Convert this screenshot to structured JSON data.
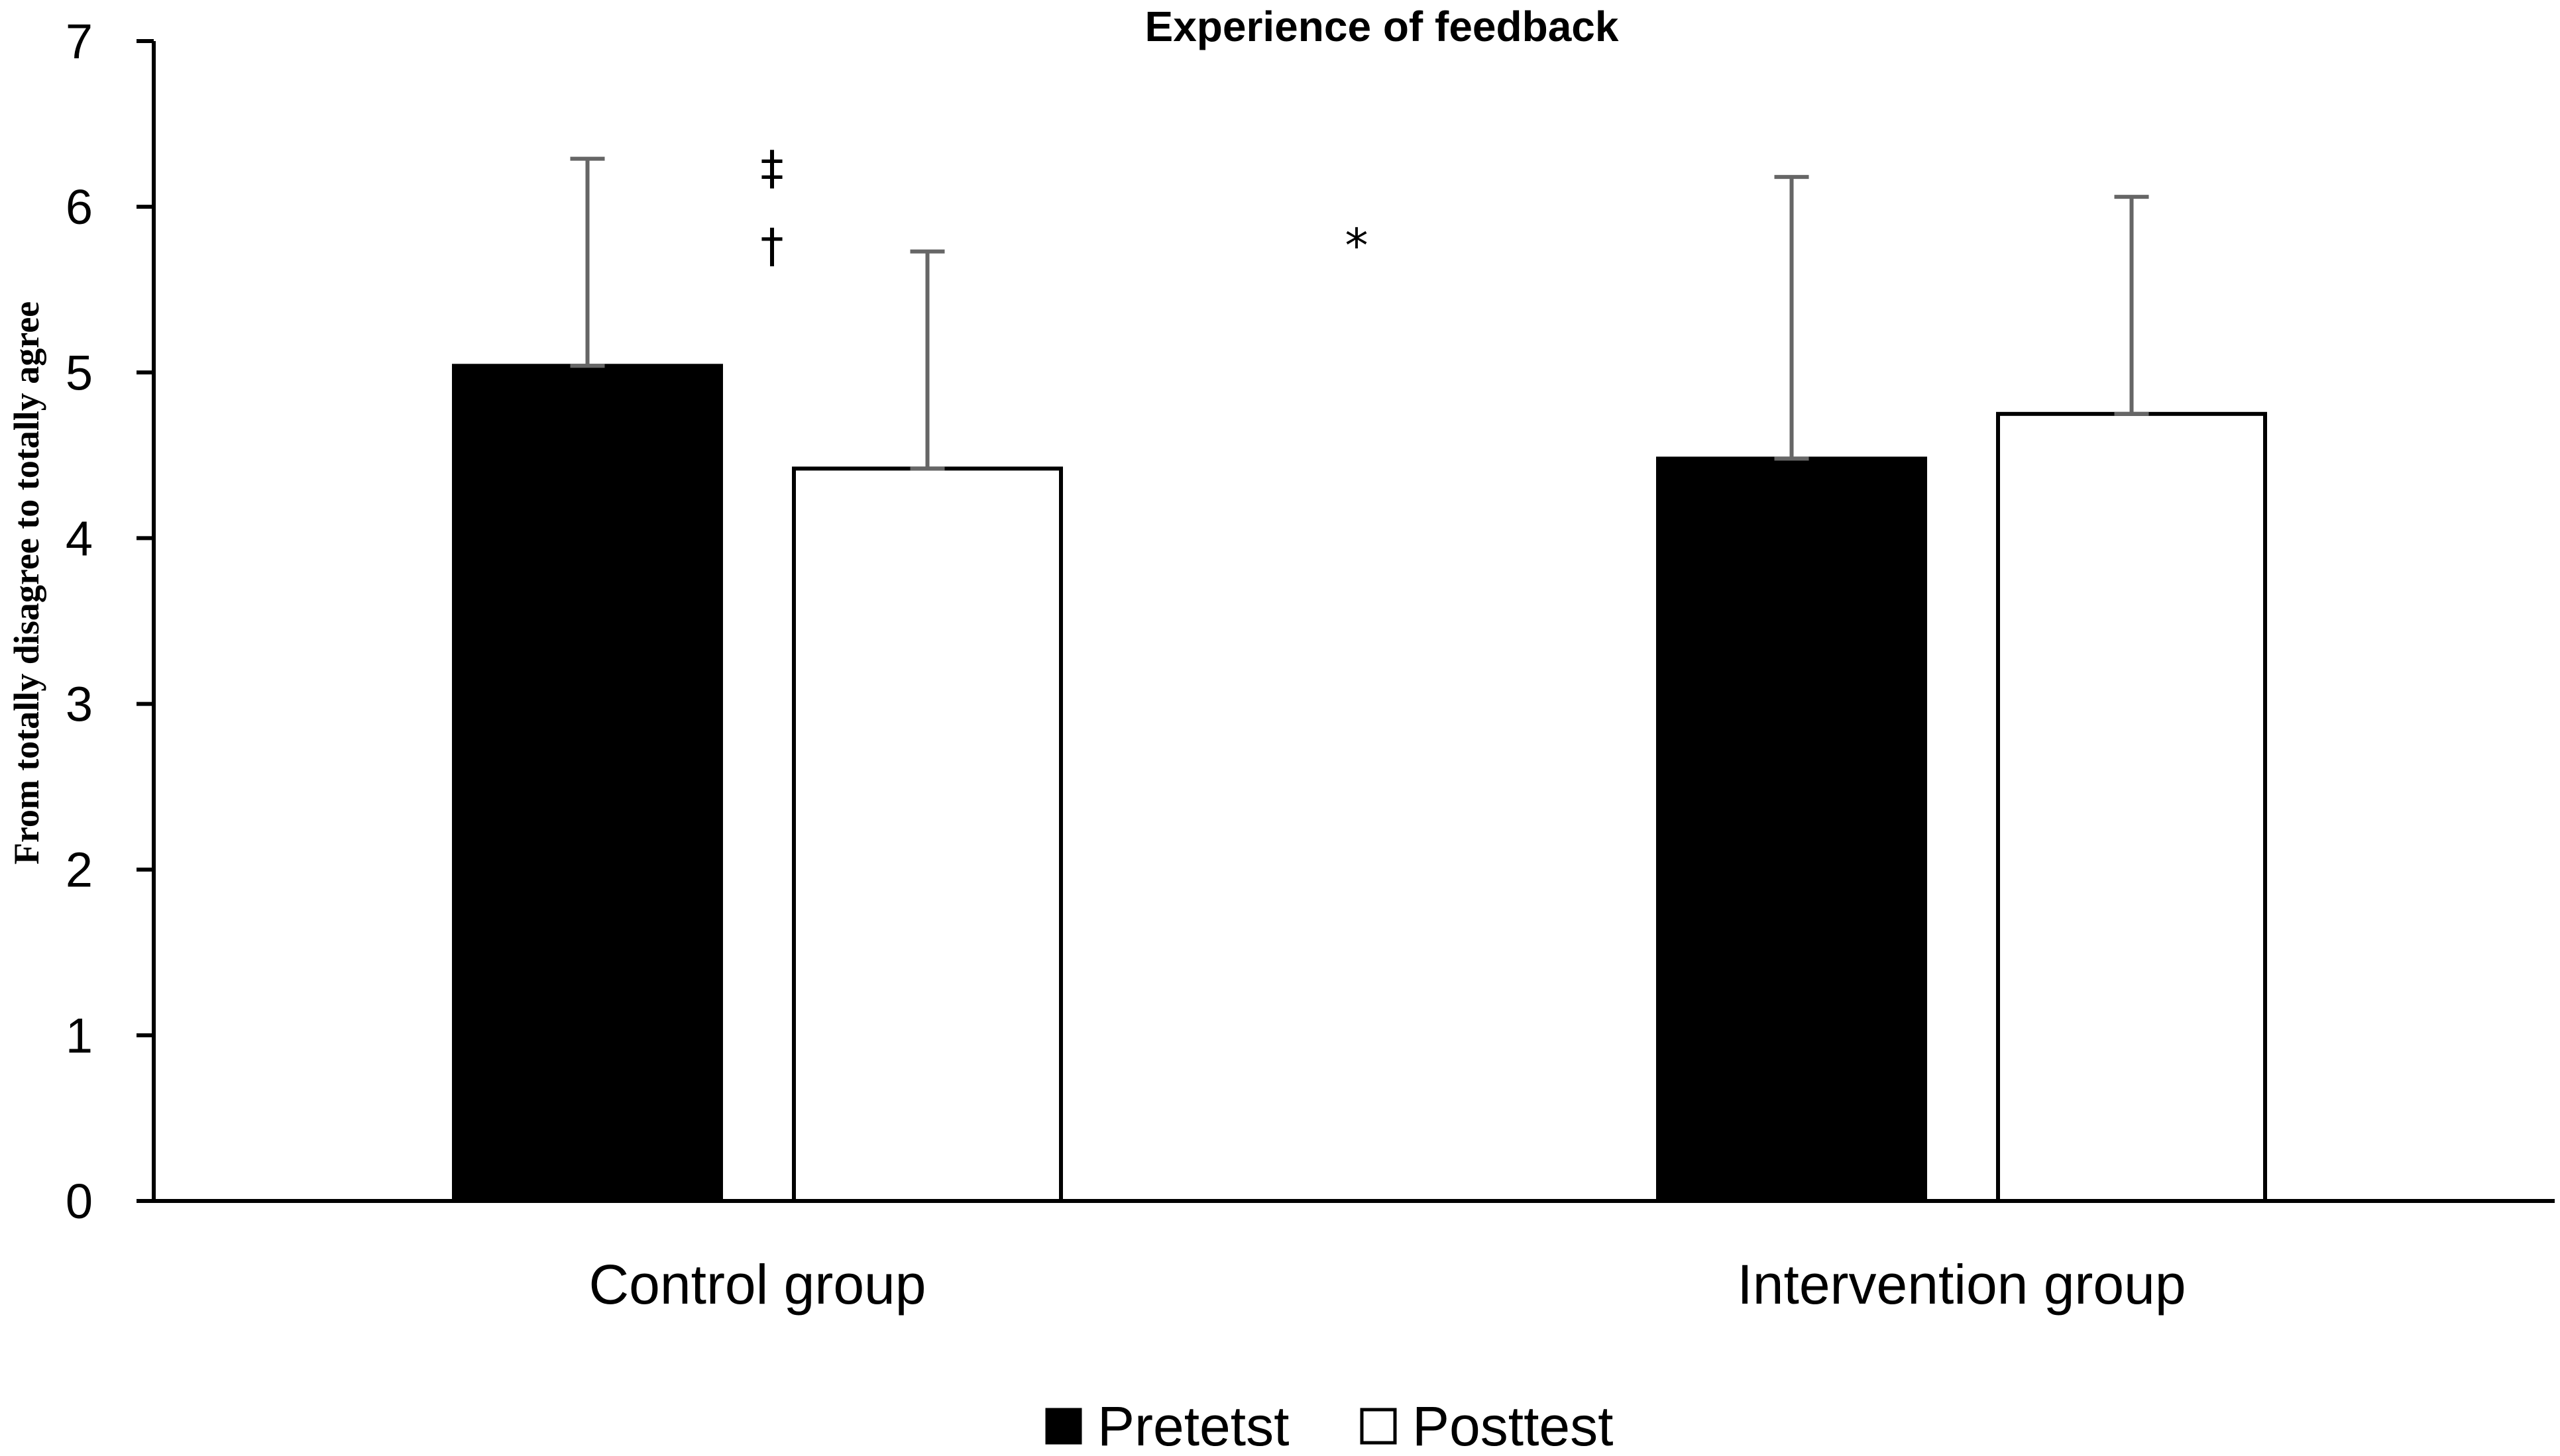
{
  "chart_data": {
    "type": "bar",
    "title": "Experience of feedback",
    "xlabel": "",
    "ylabel": "From totally disagree to totally agree",
    "ylim": [
      0,
      7
    ],
    "yticks": [
      "0",
      "1",
      "2",
      "3",
      "4",
      "5",
      "6",
      "7"
    ],
    "categories": [
      "Control group",
      "Intervention group"
    ],
    "series": [
      {
        "name": "Pretetst",
        "values": [
          5.04,
          4.48
        ],
        "error_upper": [
          6.29,
          6.18
        ],
        "fill": "#000000"
      },
      {
        "name": "Posttest",
        "values": [
          4.42,
          4.75
        ],
        "error_upper": [
          5.73,
          6.06
        ],
        "fill": "#ffffff"
      }
    ],
    "annotations": [
      {
        "text": "‡",
        "category": "Control group",
        "y": 6.25
      },
      {
        "text": "†",
        "category": "Control group",
        "y": 5.78
      },
      {
        "text": "*",
        "category": "between groups",
        "y": 5.78
      }
    ],
    "legend_position": "bottom-center",
    "error_bar_color": "#666666",
    "axis_color": "#000000"
  }
}
